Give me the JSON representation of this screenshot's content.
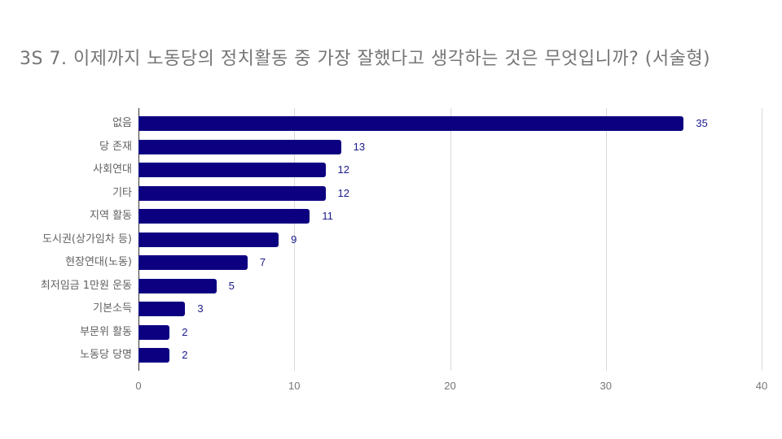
{
  "title": "3S 7. 이제까지 노동당의 정치활동 중 가장 잘했다고 생각하는 것은 무엇입니까? (서술형)",
  "colors": {
    "bar": "#0d0080",
    "value_label": "#1a1a8c",
    "axis_text": "#757575",
    "grid": "#d9d9d9"
  },
  "chart_data": {
    "type": "bar",
    "orientation": "horizontal",
    "title": "3S 7. 이제까지 노동당의 정치활동 중 가장 잘했다고 생각하는 것은 무엇입니까? (서술형)",
    "categories": [
      "없음",
      "당 존재",
      "사회연대",
      "기타",
      "지역 활동",
      "도시권(상가임차 등)",
      "현장연대(노동)",
      "최저임금 1만원 운동",
      "기본소득",
      "부문위 활동",
      "노동당 당명"
    ],
    "values": [
      35,
      13,
      12,
      12,
      11,
      9,
      7,
      5,
      3,
      2,
      2
    ],
    "xlabel": "",
    "ylabel": "",
    "xlim": [
      0,
      40
    ],
    "xticks": [
      "0",
      "10",
      "20",
      "30",
      "40"
    ],
    "grid": true,
    "legend": null,
    "data_labels": true
  }
}
